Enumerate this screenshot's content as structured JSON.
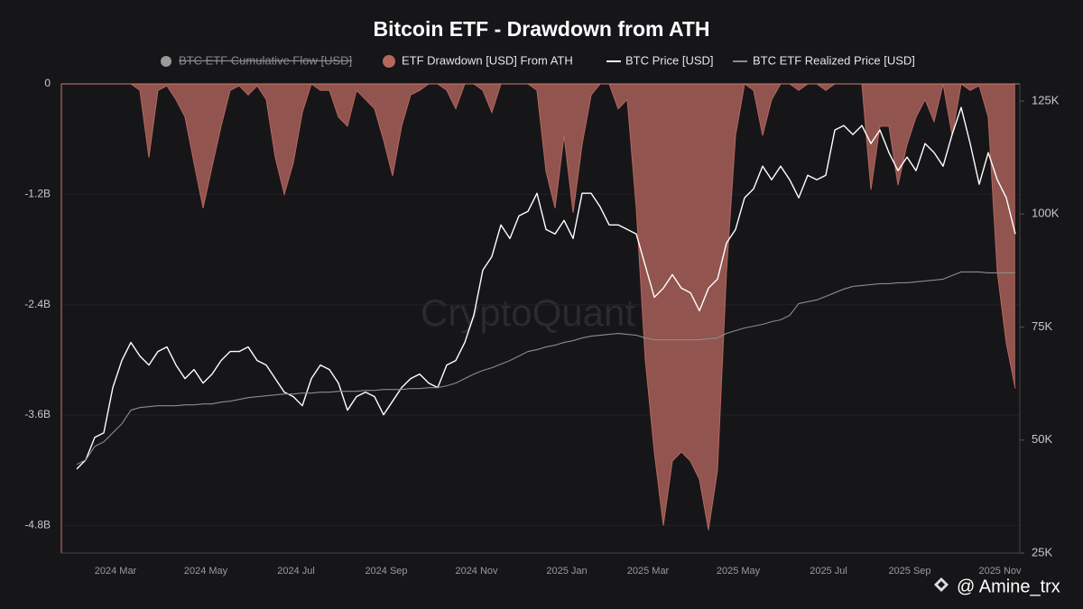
{
  "chart_data": {
    "type": "area-line",
    "title": "Bitcoin ETF - Drawdown from ATH",
    "watermark": "CryptoQuant",
    "credit": "@ Amine_trx",
    "hidden_series": [
      {
        "name": "BTC ETF Cumulative Flow [USD]",
        "color": "#9a9a9a"
      }
    ],
    "categories": [
      null,
      null,
      null,
      null,
      "2024 Mar",
      null,
      null,
      null,
      null,
      null,
      null,
      null,
      null,
      null,
      "2024 May",
      null,
      null,
      null,
      null,
      null,
      null,
      null,
      null,
      null,
      "2024 Jul",
      null,
      null,
      null,
      null,
      null,
      null,
      null,
      null,
      null,
      "2024 Sep",
      null,
      null,
      null,
      null,
      null,
      null,
      null,
      null,
      null,
      "2024 Nov",
      null,
      null,
      null,
      null,
      null,
      null,
      null,
      null,
      null,
      "2025 Jan",
      null,
      null,
      null,
      null,
      null,
      null,
      null,
      null,
      "2025 Mar",
      null,
      null,
      null,
      null,
      null,
      null,
      null,
      null,
      null,
      "2025 May",
      null,
      null,
      null,
      null,
      null,
      null,
      null,
      null,
      null,
      "2025 Jul",
      null,
      null,
      null,
      null,
      null,
      null,
      null,
      null,
      "2025 Sep",
      null,
      null,
      null,
      null,
      null,
      null,
      null,
      null,
      null,
      "2025 Nov",
      null,
      null
    ],
    "series": [
      {
        "name": "ETF Drawdown [USD] From ATH",
        "color": "#b5675e",
        "kind": "area",
        "values": [
          0,
          0,
          0,
          0,
          0,
          0,
          0,
          -70000000.0,
          -800000000.0,
          -70000000.0,
          -20000000.0,
          -170000000.0,
          -360000000.0,
          -860000000.0,
          -1350000000.0,
          -900000000.0,
          -460000000.0,
          -70000000.0,
          -20000000.0,
          -120000000.0,
          -20000000.0,
          -170000000.0,
          -800000000.0,
          -1200000000.0,
          -860000000.0,
          -310000000.0,
          0,
          -70000000.0,
          -70000000.0,
          -360000000.0,
          -460000000.0,
          -70000000.0,
          -170000000.0,
          -270000000.0,
          -610000000.0,
          -1000000000.0,
          -460000000.0,
          -120000000.0,
          -70000000.0,
          0,
          0,
          -70000000.0,
          -270000000.0,
          0,
          0,
          -70000000.0,
          -310000000.0,
          0,
          0,
          0,
          0,
          -70000000.0,
          -950000000.0,
          -1350000000.0,
          -560000000.0,
          -1400000000.0,
          -660000000.0,
          -120000000.0,
          0,
          0,
          -270000000.0,
          -170000000.0,
          -1350000000.0,
          -3000000000.0,
          -4000000000.0,
          -4800000000.0,
          -4100000000.0,
          -4000000000.0,
          -4100000000.0,
          -4300000000.0,
          -4850000000.0,
          -4200000000.0,
          -2040000000.0,
          -560000000.0,
          0,
          -70000000.0,
          -560000000.0,
          -170000000.0,
          0,
          0,
          -70000000.0,
          0,
          0,
          -70000000.0,
          0,
          0,
          0,
          0,
          -1150000000.0,
          -460000000.0,
          -460000000.0,
          -1100000000.0,
          -660000000.0,
          -360000000.0,
          -170000000.0,
          -410000000.0,
          0,
          -560000000.0,
          0,
          -70000000.0,
          -20000000.0,
          -360000000.0,
          -2040000000.0,
          -2820000000.0,
          -3310000000.0
        ]
      },
      {
        "name": "BTC Price [USD]",
        "color": "#ffffff",
        "kind": "line",
        "axis": "y2",
        "values": [
          43600,
          45600,
          50600,
          51600,
          61600,
          67600,
          71600,
          68600,
          66600,
          69600,
          70600,
          66600,
          63600,
          65600,
          62600,
          64600,
          67600,
          69600,
          69600,
          70600,
          67600,
          66600,
          63600,
          60600,
          59600,
          57600,
          63600,
          66600,
          65600,
          62600,
          56600,
          59600,
          60600,
          59600,
          55600,
          58600,
          61600,
          63600,
          64600,
          62600,
          61600,
          66600,
          67600,
          71600,
          77600,
          87600,
          90600,
          97600,
          94600,
          99600,
          100600,
          104600,
          96600,
          95600,
          98600,
          94600,
          104600,
          104600,
          101600,
          97600,
          97600,
          96600,
          95600,
          88600,
          81600,
          83600,
          86600,
          83600,
          82600,
          78600,
          83600,
          85600,
          93600,
          96600,
          103600,
          105600,
          110600,
          107600,
          110600,
          107600,
          103600,
          108600,
          107600,
          108600,
          118600,
          119600,
          117600,
          119600,
          115600,
          118600,
          113600,
          109600,
          112600,
          109600,
          115600,
          113600,
          110600,
          117600,
          123600,
          115600,
          106600,
          113600,
          107600,
          103600,
          95600
        ]
      },
      {
        "name": "BTC ETF Realized Price [USD]",
        "color": "#8c8c8c",
        "kind": "line",
        "axis": "y2",
        "values": [
          44600,
          45600,
          48600,
          49600,
          51600,
          53600,
          56600,
          57200,
          57400,
          57600,
          57600,
          57600,
          57800,
          57800,
          58000,
          58000,
          58400,
          58600,
          59000,
          59400,
          59600,
          59800,
          60000,
          60200,
          60200,
          60400,
          60400,
          60600,
          60600,
          60800,
          60800,
          60800,
          61000,
          61000,
          61200,
          61200,
          61200,
          61400,
          61400,
          61600,
          61600,
          62000,
          62600,
          63600,
          64600,
          65400,
          66000,
          66800,
          67600,
          68600,
          69600,
          70000,
          70600,
          71000,
          71600,
          72000,
          72600,
          73000,
          73200,
          73400,
          73600,
          73400,
          73200,
          72600,
          72200,
          72200,
          72200,
          72200,
          72200,
          72200,
          72400,
          72600,
          73600,
          74200,
          74800,
          75200,
          75600,
          76200,
          76600,
          77600,
          80200,
          80600,
          81000,
          81800,
          82600,
          83400,
          84000,
          84200,
          84400,
          84600,
          84600,
          84800,
          84800,
          85000,
          85200,
          85400,
          85600,
          86400,
          87200,
          87200,
          87200,
          87000,
          87000,
          87000,
          87000
        ]
      }
    ],
    "ylim": [
      -5100000000,
      0
    ],
    "yticks": [
      0,
      {
        "value": -1200000000,
        "label": "-1.2B"
      },
      {
        "value": -2400000000,
        "label": "-2.4B"
      },
      {
        "value": -3600000000,
        "label": "-3.6B"
      },
      {
        "value": -4800000000,
        "label": "-4.8B"
      }
    ],
    "y2lim": [
      25000,
      128800
    ],
    "y2ticks": [
      {
        "value": 25000,
        "label": "25K"
      },
      {
        "value": 50000,
        "label": "50K"
      },
      {
        "value": 75000,
        "label": "75K"
      },
      {
        "value": 100000,
        "label": "100K"
      },
      {
        "value": 125000,
        "label": "125K"
      }
    ],
    "grid": true
  }
}
